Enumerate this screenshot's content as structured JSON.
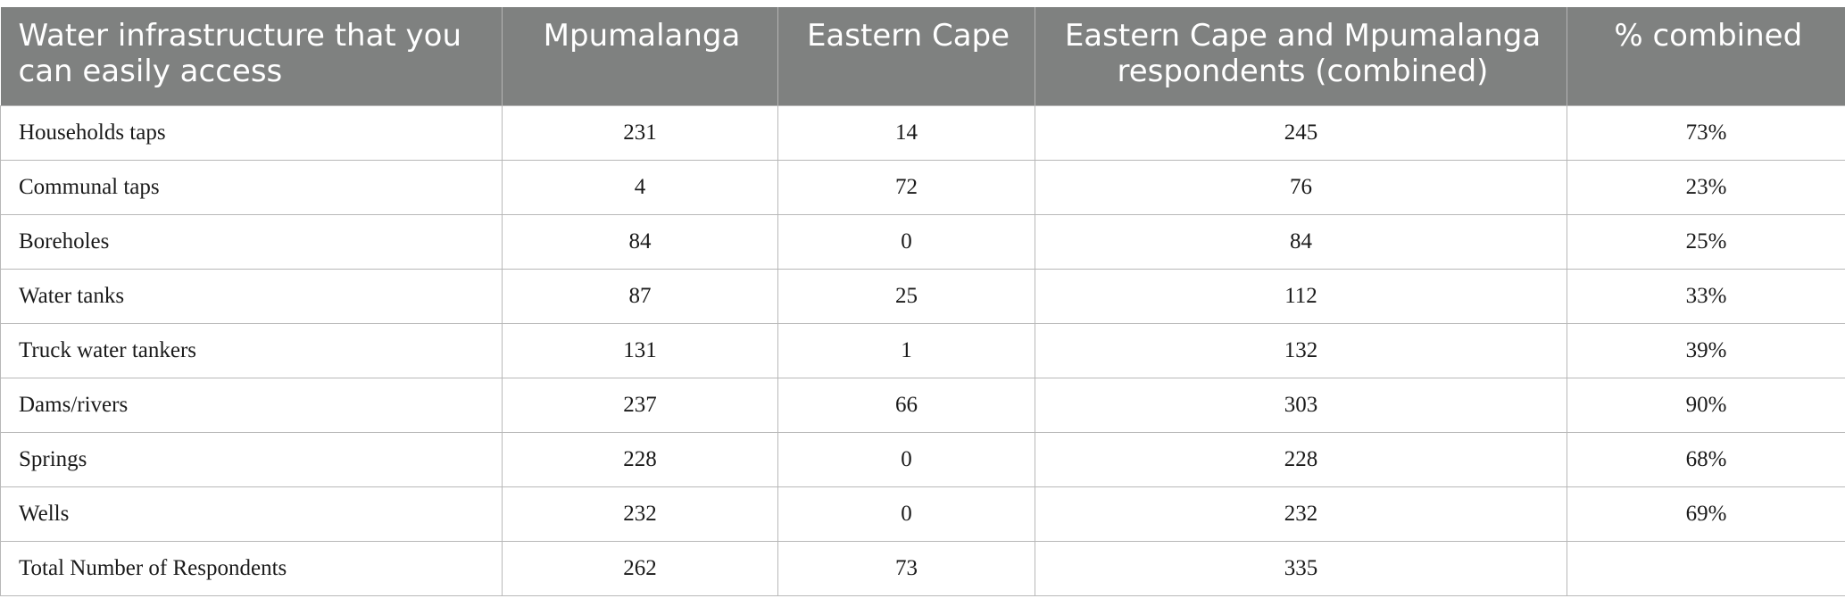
{
  "table": {
    "headers": [
      "Water infrastructure that you can easily access",
      "Mpumalanga",
      "Eastern Cape",
      "Eastern Cape and Mpumalanga respondents (combined)",
      "% combined"
    ],
    "rows": [
      [
        "Households taps",
        "231",
        "14",
        "245",
        "73%"
      ],
      [
        "Communal taps",
        "4",
        "72",
        "76",
        "23%"
      ],
      [
        "Boreholes",
        "84",
        "0",
        "84",
        "25%"
      ],
      [
        "Water tanks",
        "87",
        "25",
        "112",
        "33%"
      ],
      [
        "Truck water tankers",
        "131",
        "1",
        "132",
        "39%"
      ],
      [
        "Dams/rivers",
        "237",
        "66",
        "303",
        "90%"
      ],
      [
        "Springs",
        "228",
        "0",
        "228",
        "68%"
      ],
      [
        "Wells",
        "232",
        "0",
        "232",
        "69%"
      ],
      [
        "Total Number of Respondents",
        "262",
        "73",
        "335",
        ""
      ]
    ]
  },
  "colors": {
    "header_background": "#7f8180",
    "header_text": "#ffffff",
    "grid_line": "#b8b8b8"
  }
}
